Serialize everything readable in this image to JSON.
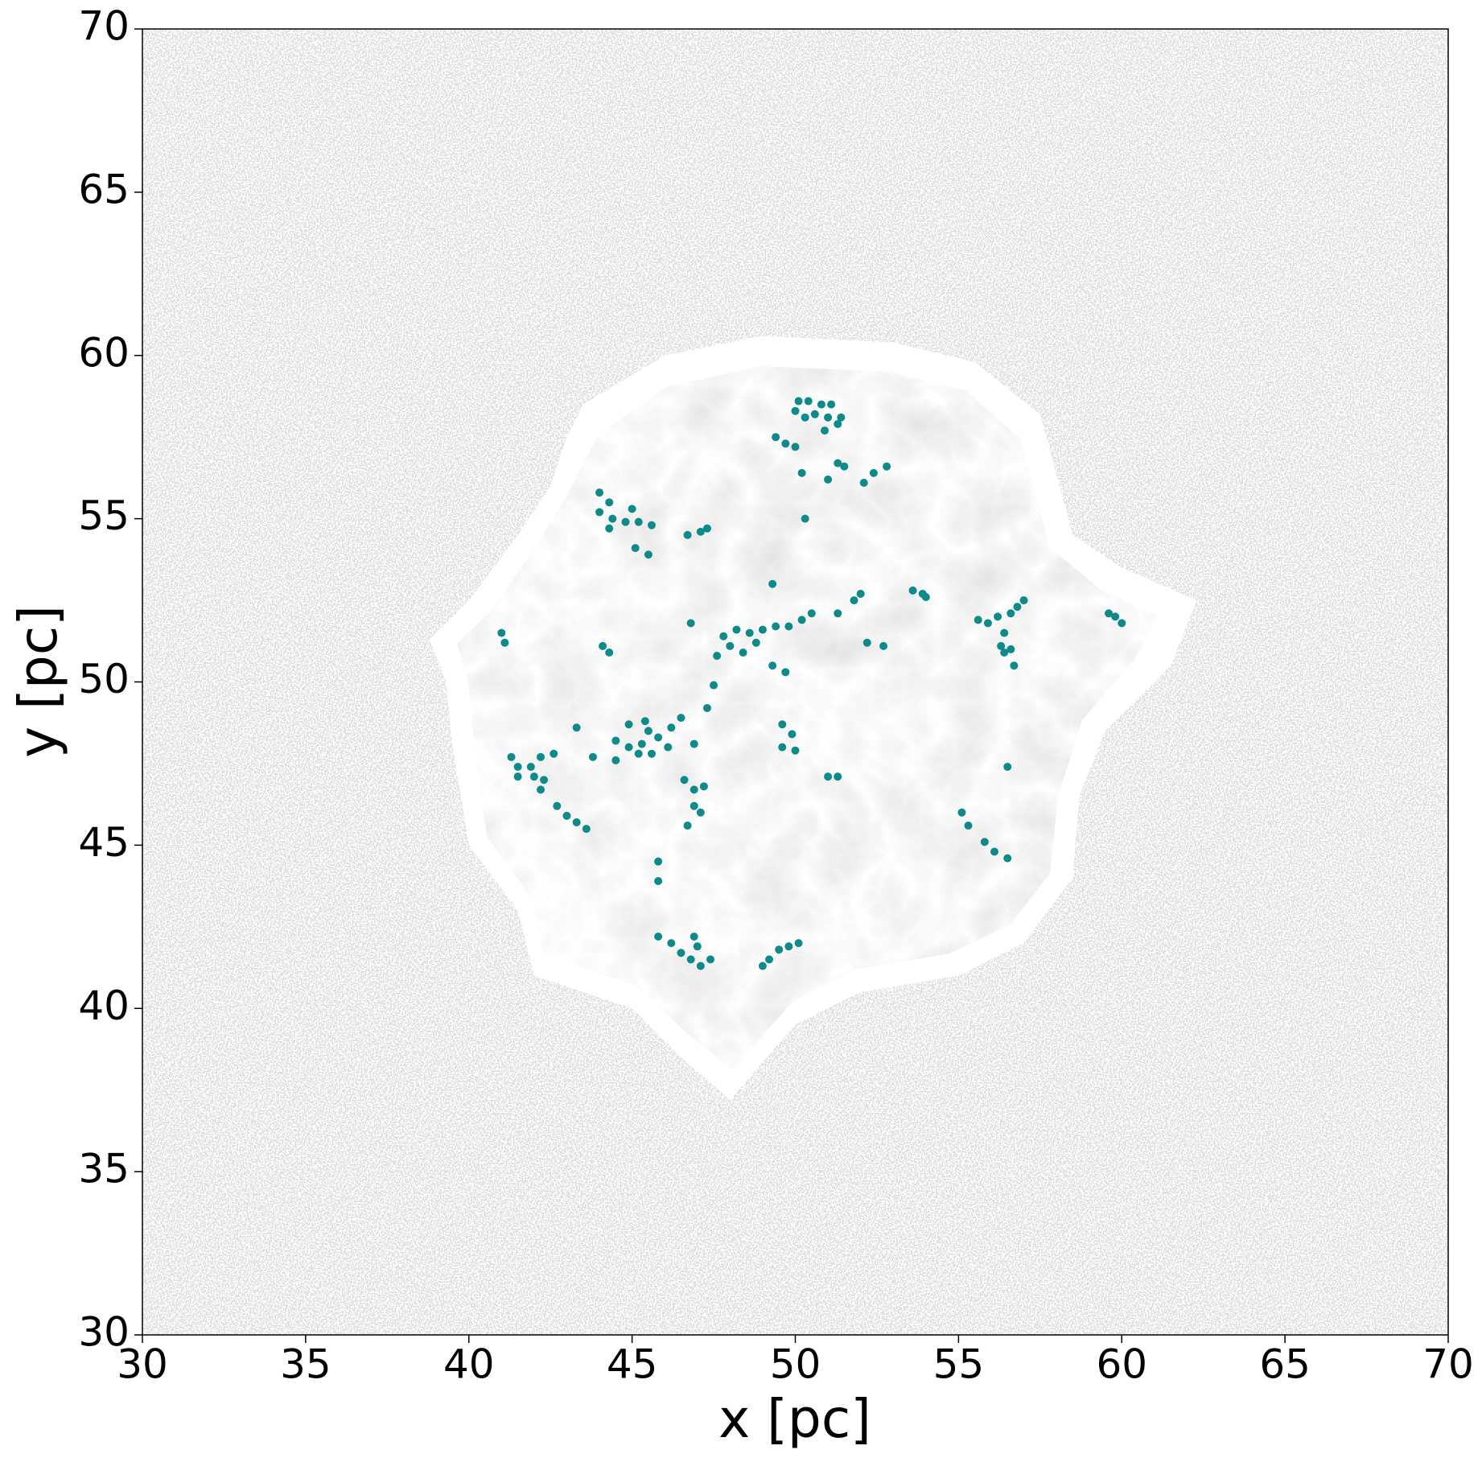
{
  "chart_data": {
    "type": "scatter",
    "xlabel": "x [pc]",
    "ylabel": "y [pc]",
    "color": "#0e8a8a",
    "xlim": [
      30,
      70
    ],
    "ylim": [
      30,
      70
    ],
    "xticks": [
      30,
      35,
      40,
      45,
      50,
      55,
      60,
      65,
      70
    ],
    "yticks": [
      30,
      35,
      40,
      45,
      50,
      55,
      60,
      65,
      70
    ],
    "x": [
      50.1,
      50.4,
      50.8,
      51.1,
      50.0,
      50.3,
      50.6,
      51.0,
      51.3,
      51.4,
      50.9,
      49.4,
      49.7,
      50.0,
      51.3,
      51.5,
      50.2,
      51.0,
      52.1,
      52.4,
      52.8,
      50.3,
      44.0,
      44.3,
      44.0,
      44.4,
      44.8,
      45.2,
      45.6,
      45.0,
      44.3,
      45.1,
      45.5,
      46.7,
      47.1,
      47.3,
      47.8,
      48.2,
      48.6,
      49.0,
      49.4,
      49.8,
      50.2,
      50.5,
      48.8,
      48.4,
      47.6,
      48.0,
      49.3,
      51.3,
      51.8,
      52.0,
      52.2,
      52.7,
      49.3,
      49.7,
      47.5,
      47.3,
      46.8,
      53.6,
      53.9,
      54.0,
      55.6,
      55.9,
      56.2,
      56.6,
      56.8,
      57.0,
      56.4,
      56.3,
      56.6,
      56.7,
      56.4,
      56.5,
      59.6,
      59.8,
      60.0,
      41.0,
      41.1,
      44.1,
      44.3,
      44.5,
      44.9,
      45.3,
      45.5,
      45.8,
      46.1,
      45.2,
      45.6,
      46.2,
      46.5,
      46.9,
      44.9,
      45.4,
      43.3,
      43.8,
      44.5,
      41.3,
      41.5,
      41.9,
      42.2,
      42.6,
      42.0,
      42.3,
      42.2,
      42.7,
      43.0,
      43.3,
      43.6,
      41.5,
      46.6,
      46.9,
      47.2,
      46.9,
      47.1,
      46.7,
      45.8,
      45.8,
      49.6,
      49.9,
      49.6,
      50.0,
      51.0,
      51.3,
      55.1,
      55.3,
      55.8,
      56.1,
      56.5,
      45.8,
      46.2,
      46.5,
      46.8,
      47.1,
      47.4,
      47.0,
      46.9,
      49.0,
      49.2,
      49.5,
      49.8,
      50.1
    ],
    "values": [
      58.6,
      58.6,
      58.5,
      58.5,
      58.3,
      58.1,
      58.2,
      58.1,
      57.9,
      58.1,
      57.7,
      57.5,
      57.3,
      57.2,
      56.7,
      56.6,
      56.4,
      56.2,
      56.1,
      56.4,
      56.6,
      55.0,
      55.8,
      55.5,
      55.2,
      55.0,
      54.9,
      54.9,
      54.8,
      55.3,
      54.7,
      54.1,
      53.9,
      54.5,
      54.6,
      54.7,
      51.4,
      51.6,
      51.5,
      51.6,
      51.7,
      51.7,
      51.9,
      52.1,
      51.2,
      50.9,
      50.8,
      51.1,
      53.0,
      52.1,
      52.5,
      52.7,
      51.2,
      51.1,
      50.5,
      50.3,
      49.9,
      49.2,
      51.8,
      52.8,
      52.7,
      52.6,
      51.9,
      51.8,
      52.0,
      52.1,
      52.3,
      52.5,
      51.5,
      51.1,
      51.0,
      50.5,
      50.9,
      47.4,
      52.1,
      52.0,
      51.8,
      51.5,
      51.2,
      51.1,
      50.9,
      48.2,
      48.0,
      48.1,
      48.5,
      48.3,
      48.0,
      47.8,
      47.8,
      48.6,
      48.9,
      48.1,
      48.7,
      48.8,
      48.6,
      47.7,
      47.6,
      47.7,
      47.4,
      47.4,
      47.7,
      47.8,
      47.1,
      47.0,
      46.7,
      46.2,
      45.9,
      45.7,
      45.5,
      47.1,
      47.0,
      46.7,
      46.8,
      46.2,
      46.0,
      45.6,
      44.5,
      43.9,
      48.7,
      48.4,
      48.0,
      47.9,
      47.1,
      47.1,
      46.0,
      45.6,
      45.1,
      44.8,
      44.6,
      42.2,
      42.0,
      41.7,
      41.5,
      41.3,
      41.5,
      41.9,
      42.2,
      41.3,
      41.5,
      41.8,
      41.9,
      42.0
    ]
  }
}
